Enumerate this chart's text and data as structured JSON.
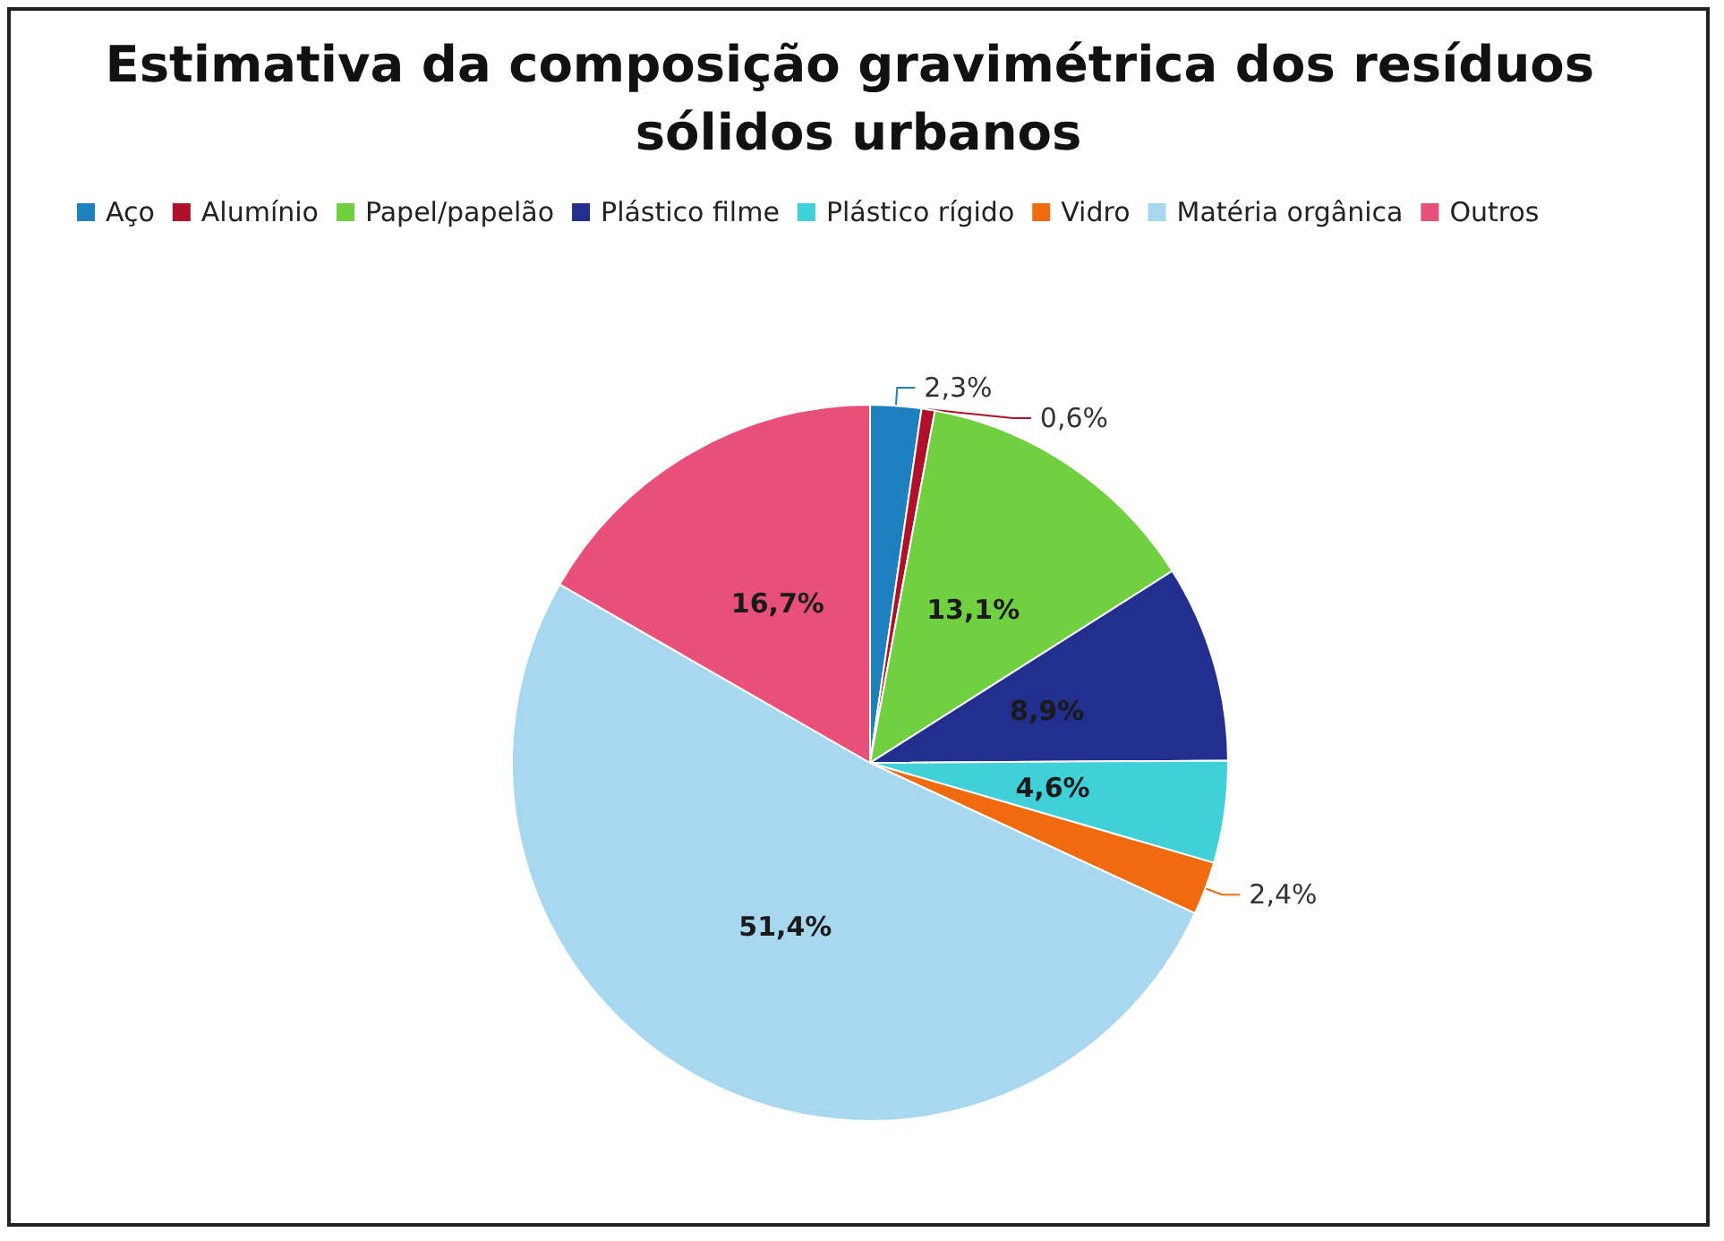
{
  "chart_data": {
    "type": "pie",
    "title": "Estimativa da composição gravimétrica dos resíduos sólidos urbanos",
    "categories": [
      "Aço",
      "Alumínio",
      "Papel/papelão",
      "Plástico filme",
      "Plástico rígido",
      "Vidro",
      "Matéria orgânica",
      "Outros"
    ],
    "values": [
      2.3,
      0.6,
      13.1,
      8.9,
      4.6,
      2.4,
      51.4,
      16.7
    ],
    "colors": [
      "#1f80c0",
      "#b0102a",
      "#70d040",
      "#232f8f",
      "#40d0d8",
      "#f06a10",
      "#a8d8f0",
      "#e8507a"
    ],
    "value_labels": [
      "2,3%",
      "0,6%",
      "13,1%",
      "8,9%",
      "4,6%",
      "2,4%",
      "51,4%",
      "16,7%"
    ],
    "legend": "top"
  }
}
